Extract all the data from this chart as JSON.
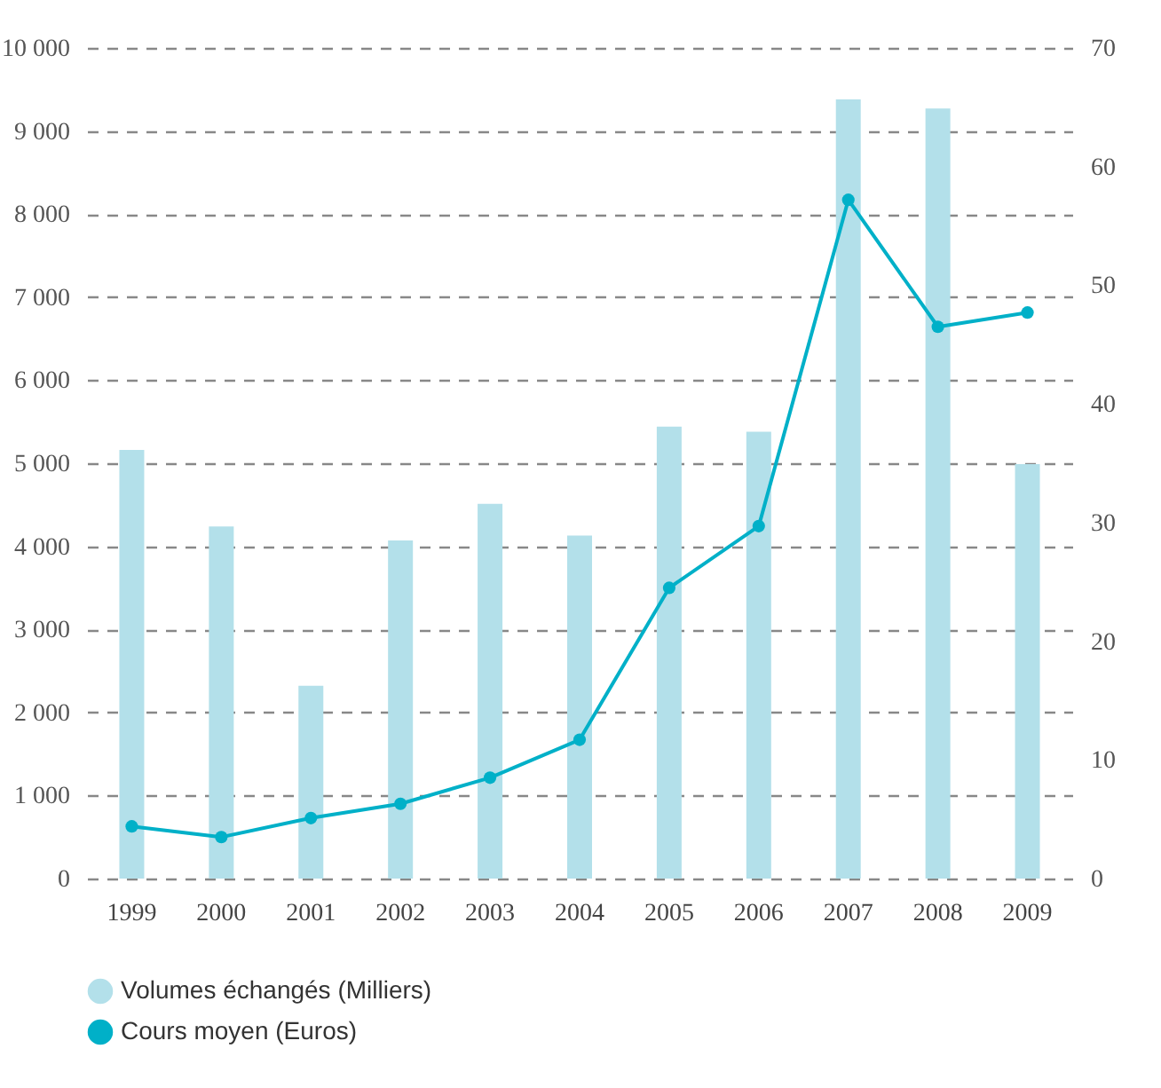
{
  "chart_data": {
    "type": "bar",
    "categories": [
      "1999",
      "2000",
      "2001",
      "2002",
      "2003",
      "2004",
      "2005",
      "2006",
      "2007",
      "2008",
      "2009"
    ],
    "series": [
      {
        "name": "Volumes échangés (Milliers)",
        "color": "#b3e0ea",
        "values": [
          5160,
          4240,
          2320,
          4070,
          4510,
          4130,
          5440,
          5380,
          9380,
          9270,
          4990
        ]
      },
      {
        "name": "Cours moyen (Euros)",
        "type": "line",
        "axis": "y2",
        "color": "#00b0c8",
        "marker": "circle",
        "values": [
          4.4,
          3.5,
          5.1,
          6.3,
          8.5,
          11.7,
          24.5,
          29.7,
          57.2,
          46.5,
          47.7
        ]
      }
    ],
    "ylim": [
      0,
      10000
    ],
    "yticks": [
      0,
      {
        "value": 1000,
        "label": "1 000"
      },
      {
        "value": 2000,
        "label": "2 000"
      },
      {
        "value": 3000,
        "label": "3 000"
      },
      {
        "value": 4000,
        "label": "4 000"
      },
      {
        "value": 5000,
        "label": "5 000"
      },
      {
        "value": 6000,
        "label": "6 000"
      },
      {
        "value": 7000,
        "label": "7 000"
      },
      {
        "value": 8000,
        "label": "8 000"
      },
      {
        "value": 9000,
        "label": "9 000"
      },
      {
        "value": 10000,
        "label": "10 000"
      }
    ],
    "y2lim": [
      0,
      70
    ],
    "y2ticks": [
      0,
      10,
      20,
      30,
      40,
      50,
      60,
      70
    ],
    "grid": "y",
    "legend": "bottom"
  }
}
